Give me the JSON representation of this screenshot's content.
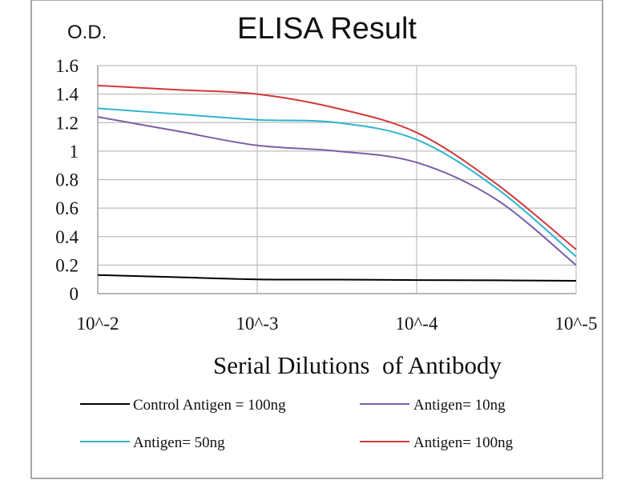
{
  "chart_data": {
    "type": "line",
    "title": "ELISA Result",
    "ylabel": "O.D.",
    "xlabel": "Serial Dilutions  of Antibody",
    "x_categories": [
      "10^-2",
      "10^-3",
      "10^-4",
      "10^-5"
    ],
    "y_ticks": [
      "0",
      "0.2",
      "0.4",
      "0.6",
      "0.8",
      "1",
      "1.2",
      "1.4",
      "1.6"
    ],
    "ylim": [
      0,
      1.6
    ],
    "grid": "on",
    "legend_position": "bottom",
    "series": [
      {
        "name": "Control Antigen = 100ng",
        "color": "#000000",
        "points": [
          [
            0,
            0.13
          ],
          [
            0.5,
            0.115
          ],
          [
            1,
            0.1
          ],
          [
            1.5,
            0.098
          ],
          [
            2,
            0.095
          ],
          [
            2.5,
            0.093
          ],
          [
            3,
            0.09
          ]
        ]
      },
      {
        "name": "Antigen= 10ng",
        "color": "#7b5ea7",
        "points": [
          [
            0,
            1.24
          ],
          [
            0.5,
            1.14
          ],
          [
            1,
            1.04
          ],
          [
            1.5,
            1.0
          ],
          [
            2,
            0.92
          ],
          [
            2.5,
            0.66
          ],
          [
            3,
            0.2
          ]
        ]
      },
      {
        "name": "Antigen= 50ng",
        "color": "#2fb4cf",
        "points": [
          [
            0,
            1.3
          ],
          [
            0.5,
            1.26
          ],
          [
            1,
            1.22
          ],
          [
            1.5,
            1.2
          ],
          [
            2,
            1.08
          ],
          [
            2.5,
            0.74
          ],
          [
            3,
            0.26
          ]
        ]
      },
      {
        "name": "Antigen= 100ng",
        "color": "#d2383b",
        "points": [
          [
            0,
            1.46
          ],
          [
            0.5,
            1.43
          ],
          [
            1,
            1.4
          ],
          [
            1.5,
            1.3
          ],
          [
            2,
            1.13
          ],
          [
            2.5,
            0.77
          ],
          [
            3,
            0.31
          ]
        ]
      }
    ]
  }
}
